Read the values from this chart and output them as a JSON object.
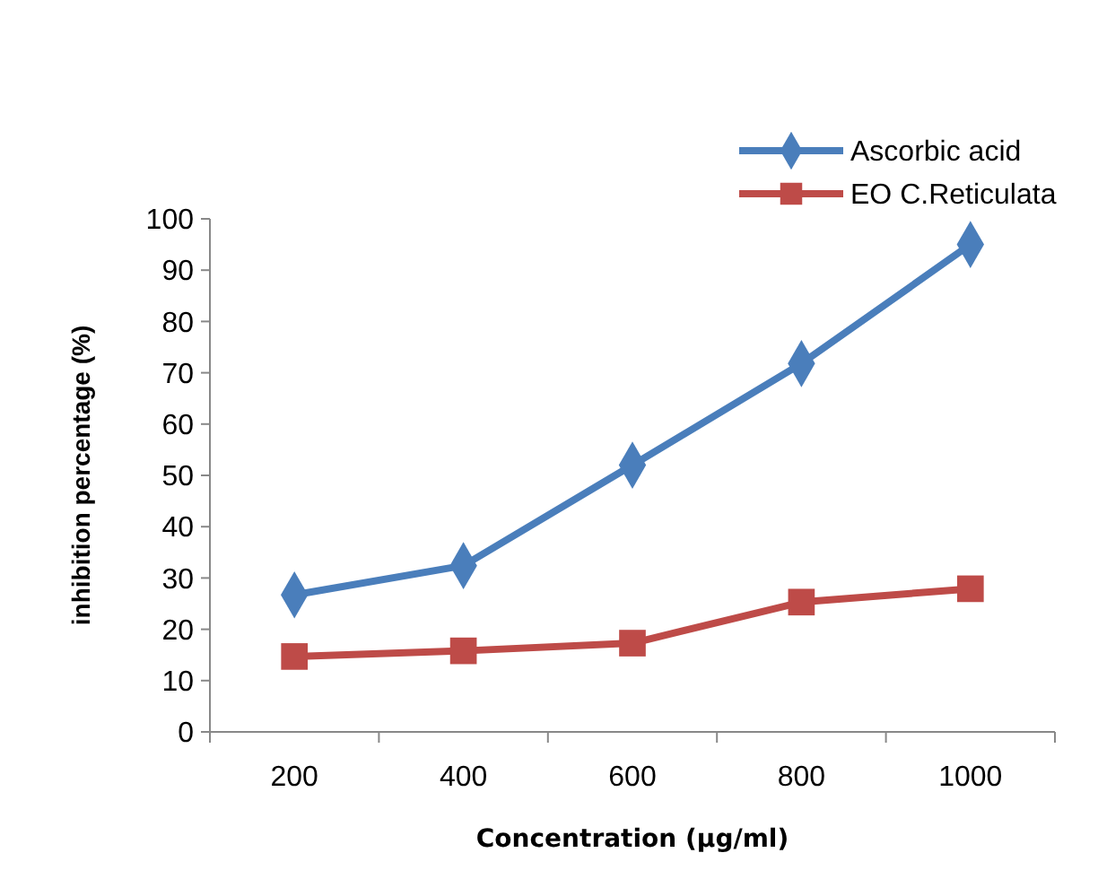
{
  "chart_data": {
    "type": "line",
    "xlabel": "Concentration (µg/ml)",
    "ylabel": "inhibition percentage (%)",
    "categories": [
      "200",
      "400",
      "600",
      "800",
      "1000"
    ],
    "ylim": [
      0,
      100
    ],
    "yticks": [
      0,
      10,
      20,
      30,
      40,
      50,
      60,
      70,
      80,
      90,
      100
    ],
    "grid": false,
    "legend": "top right",
    "series": [
      {
        "name": "Ascorbic acid",
        "color": "#4a7ebb",
        "marker": "diamond",
        "values": [
          26.7,
          32.4,
          52,
          71.8,
          95
        ]
      },
      {
        "name": "EO C.Reticulata",
        "color": "#be4b48",
        "marker": "square",
        "values": [
          14.7,
          15.8,
          17.3,
          25.3,
          27.9
        ]
      }
    ]
  }
}
